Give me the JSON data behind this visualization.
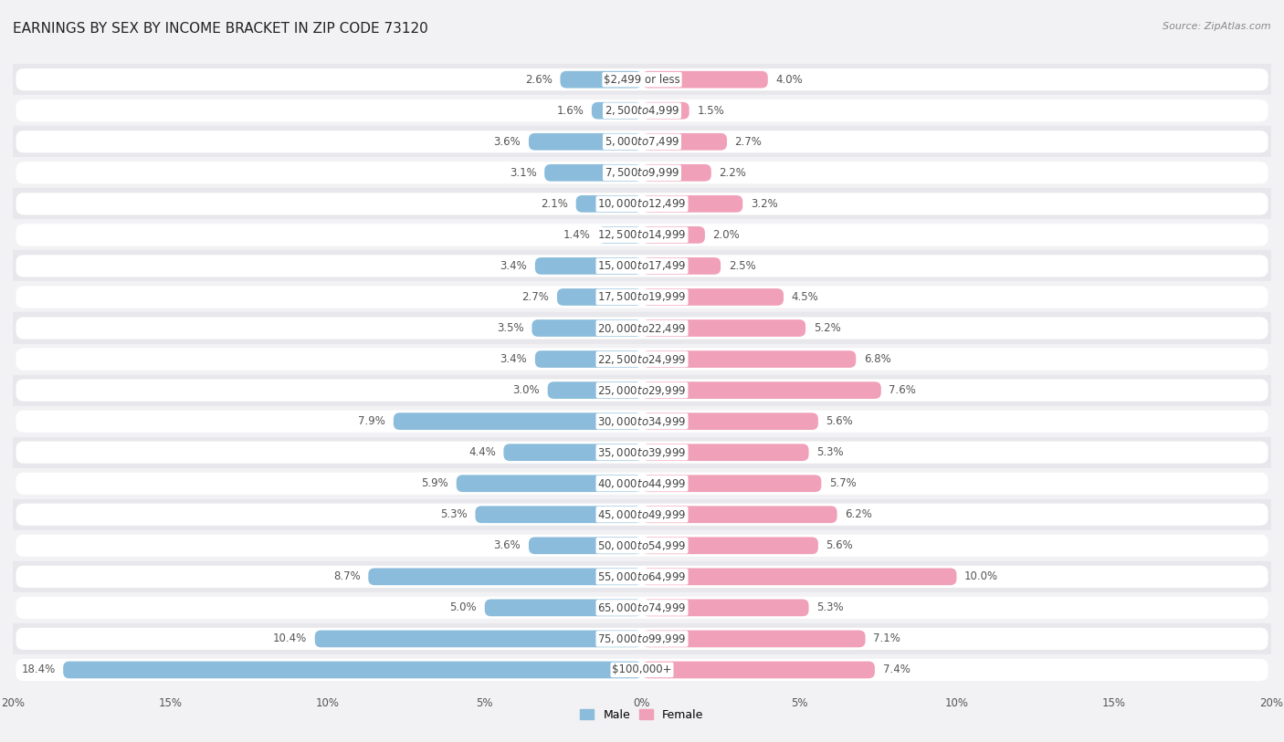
{
  "title": "EARNINGS BY SEX BY INCOME BRACKET IN ZIP CODE 73120",
  "source": "Source: ZipAtlas.com",
  "categories": [
    "$2,499 or less",
    "$2,500 to $4,999",
    "$5,000 to $7,499",
    "$7,500 to $9,999",
    "$10,000 to $12,499",
    "$12,500 to $14,999",
    "$15,000 to $17,499",
    "$17,500 to $19,999",
    "$20,000 to $22,499",
    "$22,500 to $24,999",
    "$25,000 to $29,999",
    "$30,000 to $34,999",
    "$35,000 to $39,999",
    "$40,000 to $44,999",
    "$45,000 to $49,999",
    "$50,000 to $54,999",
    "$55,000 to $64,999",
    "$65,000 to $74,999",
    "$75,000 to $99,999",
    "$100,000+"
  ],
  "male_values": [
    2.6,
    1.6,
    3.6,
    3.1,
    2.1,
    1.4,
    3.4,
    2.7,
    3.5,
    3.4,
    3.0,
    7.9,
    4.4,
    5.9,
    5.3,
    3.6,
    8.7,
    5.0,
    10.4,
    18.4
  ],
  "female_values": [
    4.0,
    1.5,
    2.7,
    2.2,
    3.2,
    2.0,
    2.5,
    4.5,
    5.2,
    6.8,
    7.6,
    5.6,
    5.3,
    5.7,
    6.2,
    5.6,
    10.0,
    5.3,
    7.1,
    7.4
  ],
  "male_color": "#8bbcdb",
  "female_color": "#f0a0b8",
  "xlim": 20.0,
  "row_color_odd": "#e8e8ec",
  "row_color_even": "#f2f2f5",
  "bar_bg_color": "#ffffff",
  "title_fontsize": 11,
  "label_fontsize": 8.5,
  "tick_fontsize": 8.5,
  "source_fontsize": 8,
  "value_label_color": "#555555",
  "cat_label_color": "#444444"
}
